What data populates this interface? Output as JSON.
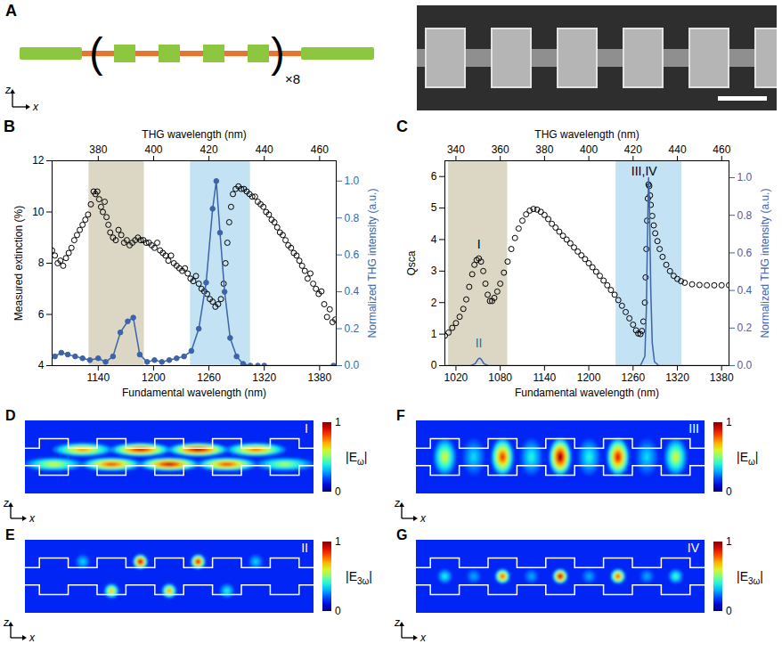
{
  "chart_data": [
    {
      "label": "B",
      "type": "line",
      "x_label": "Fundamental wavelength (nm)",
      "x2_label": "THG wavelength (nm)",
      "y_label": "Measured extinction (%)",
      "y2_label": "Normalized THG intensity (a.u.)",
      "xlim": [
        1090,
        1398
      ],
      "xticks": [
        1140,
        1200,
        1260,
        1320,
        1380
      ],
      "x2lim": [
        363.3,
        466.0
      ],
      "x2ticks": [
        380,
        400,
        420,
        440,
        460
      ],
      "ylim": [
        4,
        12
      ],
      "yticks": [
        4,
        6,
        8,
        10,
        12
      ],
      "y2lim": [
        0,
        1.11
      ],
      "y2ticks": [
        {
          "value": 0,
          "label": "0.0"
        },
        0.2,
        0.4,
        0.6,
        0.8,
        {
          "value": 1,
          "label": "1.0"
        }
      ],
      "shaded_regions": [
        {
          "x1": 1130,
          "x2": 1190,
          "color": "#dcd6c5"
        },
        {
          "x1": 1240,
          "x2": 1305,
          "color": "#c3e2f4"
        }
      ],
      "series": [
        {
          "type": "scatter",
          "marker": "open circle",
          "color": "#000000",
          "x": [
            1090,
            1093,
            1096,
            1099,
            1102,
            1105,
            1108,
            1111,
            1114,
            1117,
            1120,
            1123,
            1126,
            1129,
            1132,
            1135,
            1137,
            1139,
            1141,
            1143,
            1145,
            1147,
            1149,
            1151,
            1153,
            1156,
            1159,
            1162,
            1165,
            1168,
            1171,
            1174,
            1177,
            1180,
            1183,
            1186,
            1189,
            1192,
            1195,
            1198,
            1201,
            1204,
            1207,
            1210,
            1213,
            1216,
            1219,
            1222,
            1225,
            1228,
            1231,
            1234,
            1237,
            1240,
            1243,
            1246,
            1249,
            1252,
            1255,
            1258,
            1261,
            1264,
            1267,
            1270,
            1273,
            1276,
            1278,
            1280,
            1282,
            1284,
            1286,
            1289,
            1292,
            1295,
            1298,
            1301,
            1304,
            1307,
            1310,
            1313,
            1316,
            1319,
            1322,
            1325,
            1328,
            1331,
            1334,
            1337,
            1340,
            1343,
            1346,
            1349,
            1352,
            1355,
            1358,
            1361,
            1364,
            1367,
            1370,
            1373,
            1376,
            1379,
            1382,
            1385,
            1388,
            1391,
            1394,
            1397
          ],
          "values": [
            8.5,
            8.3,
            8.0,
            8.1,
            7.9,
            8.2,
            8.4,
            8.6,
            8.9,
            9.1,
            9.3,
            9.5,
            9.7,
            9.9,
            10.3,
            10.8,
            10.7,
            10.8,
            10.5,
            10.2,
            10.0,
            10.4,
            9.8,
            9.5,
            9.2,
            9.0,
            8.9,
            9.3,
            9.1,
            8.8,
            8.9,
            8.7,
            8.8,
            8.9,
            9.0,
            8.9,
            8.9,
            8.8,
            8.8,
            8.7,
            8.6,
            8.8,
            8.5,
            8.4,
            8.3,
            8.1,
            8.3,
            8.0,
            7.9,
            7.8,
            7.7,
            7.8,
            7.6,
            7.4,
            7.3,
            7.5,
            7.2,
            7.0,
            6.9,
            6.8,
            6.6,
            6.5,
            6.3,
            6.4,
            6.6,
            7.2,
            8.0,
            8.8,
            9.6,
            10.2,
            10.7,
            10.9,
            11.0,
            10.9,
            10.9,
            10.8,
            10.7,
            10.6,
            10.6,
            10.4,
            10.3,
            10.2,
            10.0,
            9.9,
            9.7,
            9.6,
            9.4,
            9.2,
            9.1,
            8.9,
            8.7,
            8.6,
            8.4,
            8.3,
            8.1,
            7.9,
            7.7,
            7.4,
            7.6,
            7.2,
            7.0,
            6.8,
            6.9,
            6.4,
            5.9,
            6.2,
            5.7,
            5.8
          ]
        },
        {
          "type": "line",
          "marker": "dot",
          "color": "#3c64a8",
          "axis": "y2",
          "x": [
            1093,
            1100,
            1107,
            1115,
            1123,
            1131,
            1140,
            1148,
            1156,
            1164,
            1172,
            1178,
            1185,
            1193,
            1201,
            1209,
            1217,
            1225,
            1233,
            1241,
            1249,
            1257,
            1264,
            1268,
            1272,
            1277,
            1283,
            1290,
            1297,
            1305,
            1313,
            1320,
            1395
          ],
          "values": [
            0.05,
            0.07,
            0.06,
            0.05,
            0.04,
            0.03,
            0.04,
            0.02,
            0.05,
            0.18,
            0.24,
            0.26,
            0.06,
            0.02,
            0.03,
            0.02,
            0.03,
            0.04,
            0.05,
            0.08,
            0.2,
            0.45,
            0.85,
            1.0,
            0.72,
            0.4,
            0.15,
            0.05,
            0.01,
            0.0,
            0.0,
            0.0,
            0.0
          ]
        }
      ]
    },
    {
      "label": "C",
      "type": "line",
      "x_label": "Fundamental wavelength (nm)",
      "x2_label": "THG wavelength (nm)",
      "y_label": "Qsca",
      "y2_label": "Normalized THG intensity (a.u.)",
      "xlim": [
        1005,
        1390
      ],
      "xticks": [
        1020,
        1080,
        1140,
        1200,
        1260,
        1320,
        1380
      ],
      "x2lim": [
        335.0,
        463.3
      ],
      "x2ticks": [
        340,
        360,
        380,
        400,
        420,
        440,
        460
      ],
      "ylim": [
        0,
        6.5
      ],
      "yticks": [
        0,
        1,
        2,
        3,
        4,
        5,
        6
      ],
      "y2lim": [
        0,
        1.09
      ],
      "y2ticks": [
        {
          "value": 0,
          "label": "0.0"
        },
        0.2,
        0.4,
        0.6,
        0.8,
        {
          "value": 1,
          "label": "1.0"
        }
      ],
      "shaded_regions": [
        {
          "x1": 1010,
          "x2": 1090,
          "color": "#dcd6c5"
        },
        {
          "x1": 1237,
          "x2": 1326,
          "color": "#c3e2f4"
        }
      ],
      "annotations": [
        {
          "text": "I",
          "x": 1051,
          "y": 3.85,
          "color": "#000000"
        },
        {
          "text": "II",
          "x": 1051,
          "y": 0.12,
          "color": "#3c64a8",
          "axis": "y2"
        },
        {
          "text": "III,IV",
          "x": 1275,
          "y": 6.15,
          "color": "#000000"
        }
      ],
      "series": [
        {
          "type": "scatter",
          "marker": "open circle",
          "color": "#000000",
          "x": [
            1005,
            1010,
            1015,
            1020,
            1025,
            1030,
            1034,
            1038,
            1042,
            1045,
            1048,
            1051,
            1054,
            1057,
            1060,
            1063,
            1066,
            1069,
            1072,
            1076,
            1080,
            1085,
            1090,
            1095,
            1100,
            1105,
            1110,
            1115,
            1120,
            1125,
            1130,
            1135,
            1140,
            1145,
            1150,
            1155,
            1160,
            1165,
            1170,
            1175,
            1180,
            1185,
            1190,
            1195,
            1200,
            1205,
            1210,
            1215,
            1220,
            1225,
            1230,
            1235,
            1240,
            1245,
            1250,
            1255,
            1260,
            1264,
            1267,
            1270,
            1272,
            1274,
            1276,
            1277,
            1278,
            1279,
            1280,
            1281,
            1282,
            1283,
            1284,
            1286,
            1288,
            1290,
            1293,
            1296,
            1300,
            1305,
            1310,
            1315,
            1320,
            1325,
            1330,
            1340,
            1350,
            1360,
            1370,
            1380,
            1390
          ],
          "values": [
            0.95,
            1.05,
            1.2,
            1.35,
            1.55,
            1.8,
            2.1,
            2.5,
            2.9,
            3.2,
            3.35,
            3.4,
            3.3,
            3.0,
            2.6,
            2.25,
            2.05,
            2.05,
            2.15,
            2.35,
            2.6,
            2.95,
            3.3,
            3.7,
            4.05,
            4.35,
            4.6,
            4.8,
            4.92,
            4.97,
            4.95,
            4.88,
            4.78,
            4.65,
            4.5,
            4.38,
            4.25,
            4.12,
            4.0,
            3.88,
            3.75,
            3.62,
            3.5,
            3.38,
            3.25,
            3.12,
            2.98,
            2.85,
            2.7,
            2.55,
            2.4,
            2.25,
            2.08,
            1.9,
            1.7,
            1.5,
            1.3,
            1.12,
            1.02,
            1.0,
            1.1,
            1.4,
            2.0,
            2.8,
            3.7,
            4.6,
            5.3,
            5.75,
            5.7,
            5.4,
            5.1,
            4.75,
            4.45,
            4.2,
            3.95,
            3.7,
            3.45,
            3.2,
            3.0,
            2.85,
            2.75,
            2.68,
            2.63,
            2.58,
            2.56,
            2.55,
            2.55,
            2.55,
            2.55
          ]
        },
        {
          "type": "line",
          "color": "#3c64a8",
          "axis": "y2",
          "x": [
            1005,
            1040,
            1046,
            1050,
            1052,
            1054,
            1058,
            1064,
            1270,
            1276,
            1278,
            1280,
            1281,
            1282,
            1284,
            1286,
            1289,
            1295,
            1390
          ],
          "values": [
            0,
            0,
            0.01,
            0.035,
            0.04,
            0.035,
            0.01,
            0,
            0,
            0.05,
            0.3,
            0.8,
            1.0,
            0.9,
            0.4,
            0.12,
            0.02,
            0,
            0
          ]
        }
      ]
    }
  ],
  "schematic": {
    "label": "A",
    "repeat_label": "×8",
    "axis_labels": [
      "z",
      "x"
    ]
  },
  "field_maps": [
    {
      "label": "D",
      "mode": "I",
      "quantity": "|Eω|",
      "colorbar": {
        "range": [
          0,
          1
        ],
        "ticks": [
          0,
          1
        ]
      },
      "base_level": 0.15,
      "marker": "wide",
      "axis_labels": [
        "z",
        "x"
      ],
      "hotspots": [
        {
          "x": 0.2,
          "z": 0.4,
          "value": 0.75
        },
        {
          "x": 0.4,
          "z": 0.4,
          "value": 0.95
        },
        {
          "x": 0.6,
          "z": 0.4,
          "value": 1.0
        },
        {
          "x": 0.8,
          "z": 0.4,
          "value": 0.8
        },
        {
          "x": 0.1,
          "z": 0.6,
          "value": 0.6
        },
        {
          "x": 0.3,
          "z": 0.6,
          "value": 0.85
        },
        {
          "x": 0.5,
          "z": 0.6,
          "value": 0.95
        },
        {
          "x": 0.7,
          "z": 0.6,
          "value": 0.85
        },
        {
          "x": 0.9,
          "z": 0.6,
          "value": 0.55
        }
      ]
    },
    {
      "label": "E",
      "mode": "II",
      "quantity": "|E3ω|",
      "colorbar": {
        "range": [
          0,
          1
        ],
        "ticks": [
          0,
          1
        ]
      },
      "base_level": 0.15,
      "marker": "round",
      "axis_labels": [
        "z",
        "x"
      ],
      "hotspots": [
        {
          "x": 0.4,
          "z": 0.3,
          "value": 1.0
        },
        {
          "x": 0.6,
          "z": 0.3,
          "value": 0.95
        },
        {
          "x": 0.3,
          "z": 0.7,
          "value": 0.7
        },
        {
          "x": 0.5,
          "z": 0.7,
          "value": 0.75
        },
        {
          "x": 0.2,
          "z": 0.3,
          "value": 0.35
        },
        {
          "x": 0.8,
          "z": 0.3,
          "value": 0.35
        },
        {
          "x": 0.7,
          "z": 0.7,
          "value": 0.4
        }
      ]
    },
    {
      "label": "F",
      "mode": "III",
      "quantity": "|Eω|",
      "colorbar": {
        "range": [
          0,
          1
        ],
        "ticks": [
          0,
          1
        ]
      },
      "base_level": 0.15,
      "marker": "tall",
      "axis_labels": [
        "z",
        "x"
      ],
      "hotspots": [
        {
          "x": 0.1,
          "z": 0.5,
          "value": 0.6
        },
        {
          "x": 0.3,
          "z": 0.5,
          "value": 0.85
        },
        {
          "x": 0.5,
          "z": 0.5,
          "value": 1.0
        },
        {
          "x": 0.7,
          "z": 0.5,
          "value": 0.9
        },
        {
          "x": 0.9,
          "z": 0.5,
          "value": 0.6
        },
        {
          "x": 0.2,
          "z": 0.5,
          "value": 0.35
        },
        {
          "x": 0.4,
          "z": 0.5,
          "value": 0.4
        },
        {
          "x": 0.6,
          "z": 0.5,
          "value": 0.4
        },
        {
          "x": 0.8,
          "z": 0.5,
          "value": 0.35
        }
      ]
    },
    {
      "label": "G",
      "mode": "IV",
      "quantity": "|E3ω|",
      "colorbar": {
        "range": [
          0,
          1
        ],
        "ticks": [
          0,
          1
        ]
      },
      "base_level": 0.15,
      "marker": "round",
      "axis_labels": [
        "z",
        "x"
      ],
      "hotspots": [
        {
          "x": 0.1,
          "z": 0.5,
          "value": 0.4
        },
        {
          "x": 0.3,
          "z": 0.5,
          "value": 0.85
        },
        {
          "x": 0.5,
          "z": 0.5,
          "value": 1.0
        },
        {
          "x": 0.7,
          "z": 0.5,
          "value": 0.85
        },
        {
          "x": 0.9,
          "z": 0.5,
          "value": 0.45
        },
        {
          "x": 0.2,
          "z": 0.5,
          "value": 0.3
        },
        {
          "x": 0.4,
          "z": 0.5,
          "value": 0.3
        },
        {
          "x": 0.6,
          "z": 0.5,
          "value": 0.3
        },
        {
          "x": 0.8,
          "z": 0.5,
          "value": 0.3
        }
      ]
    }
  ]
}
